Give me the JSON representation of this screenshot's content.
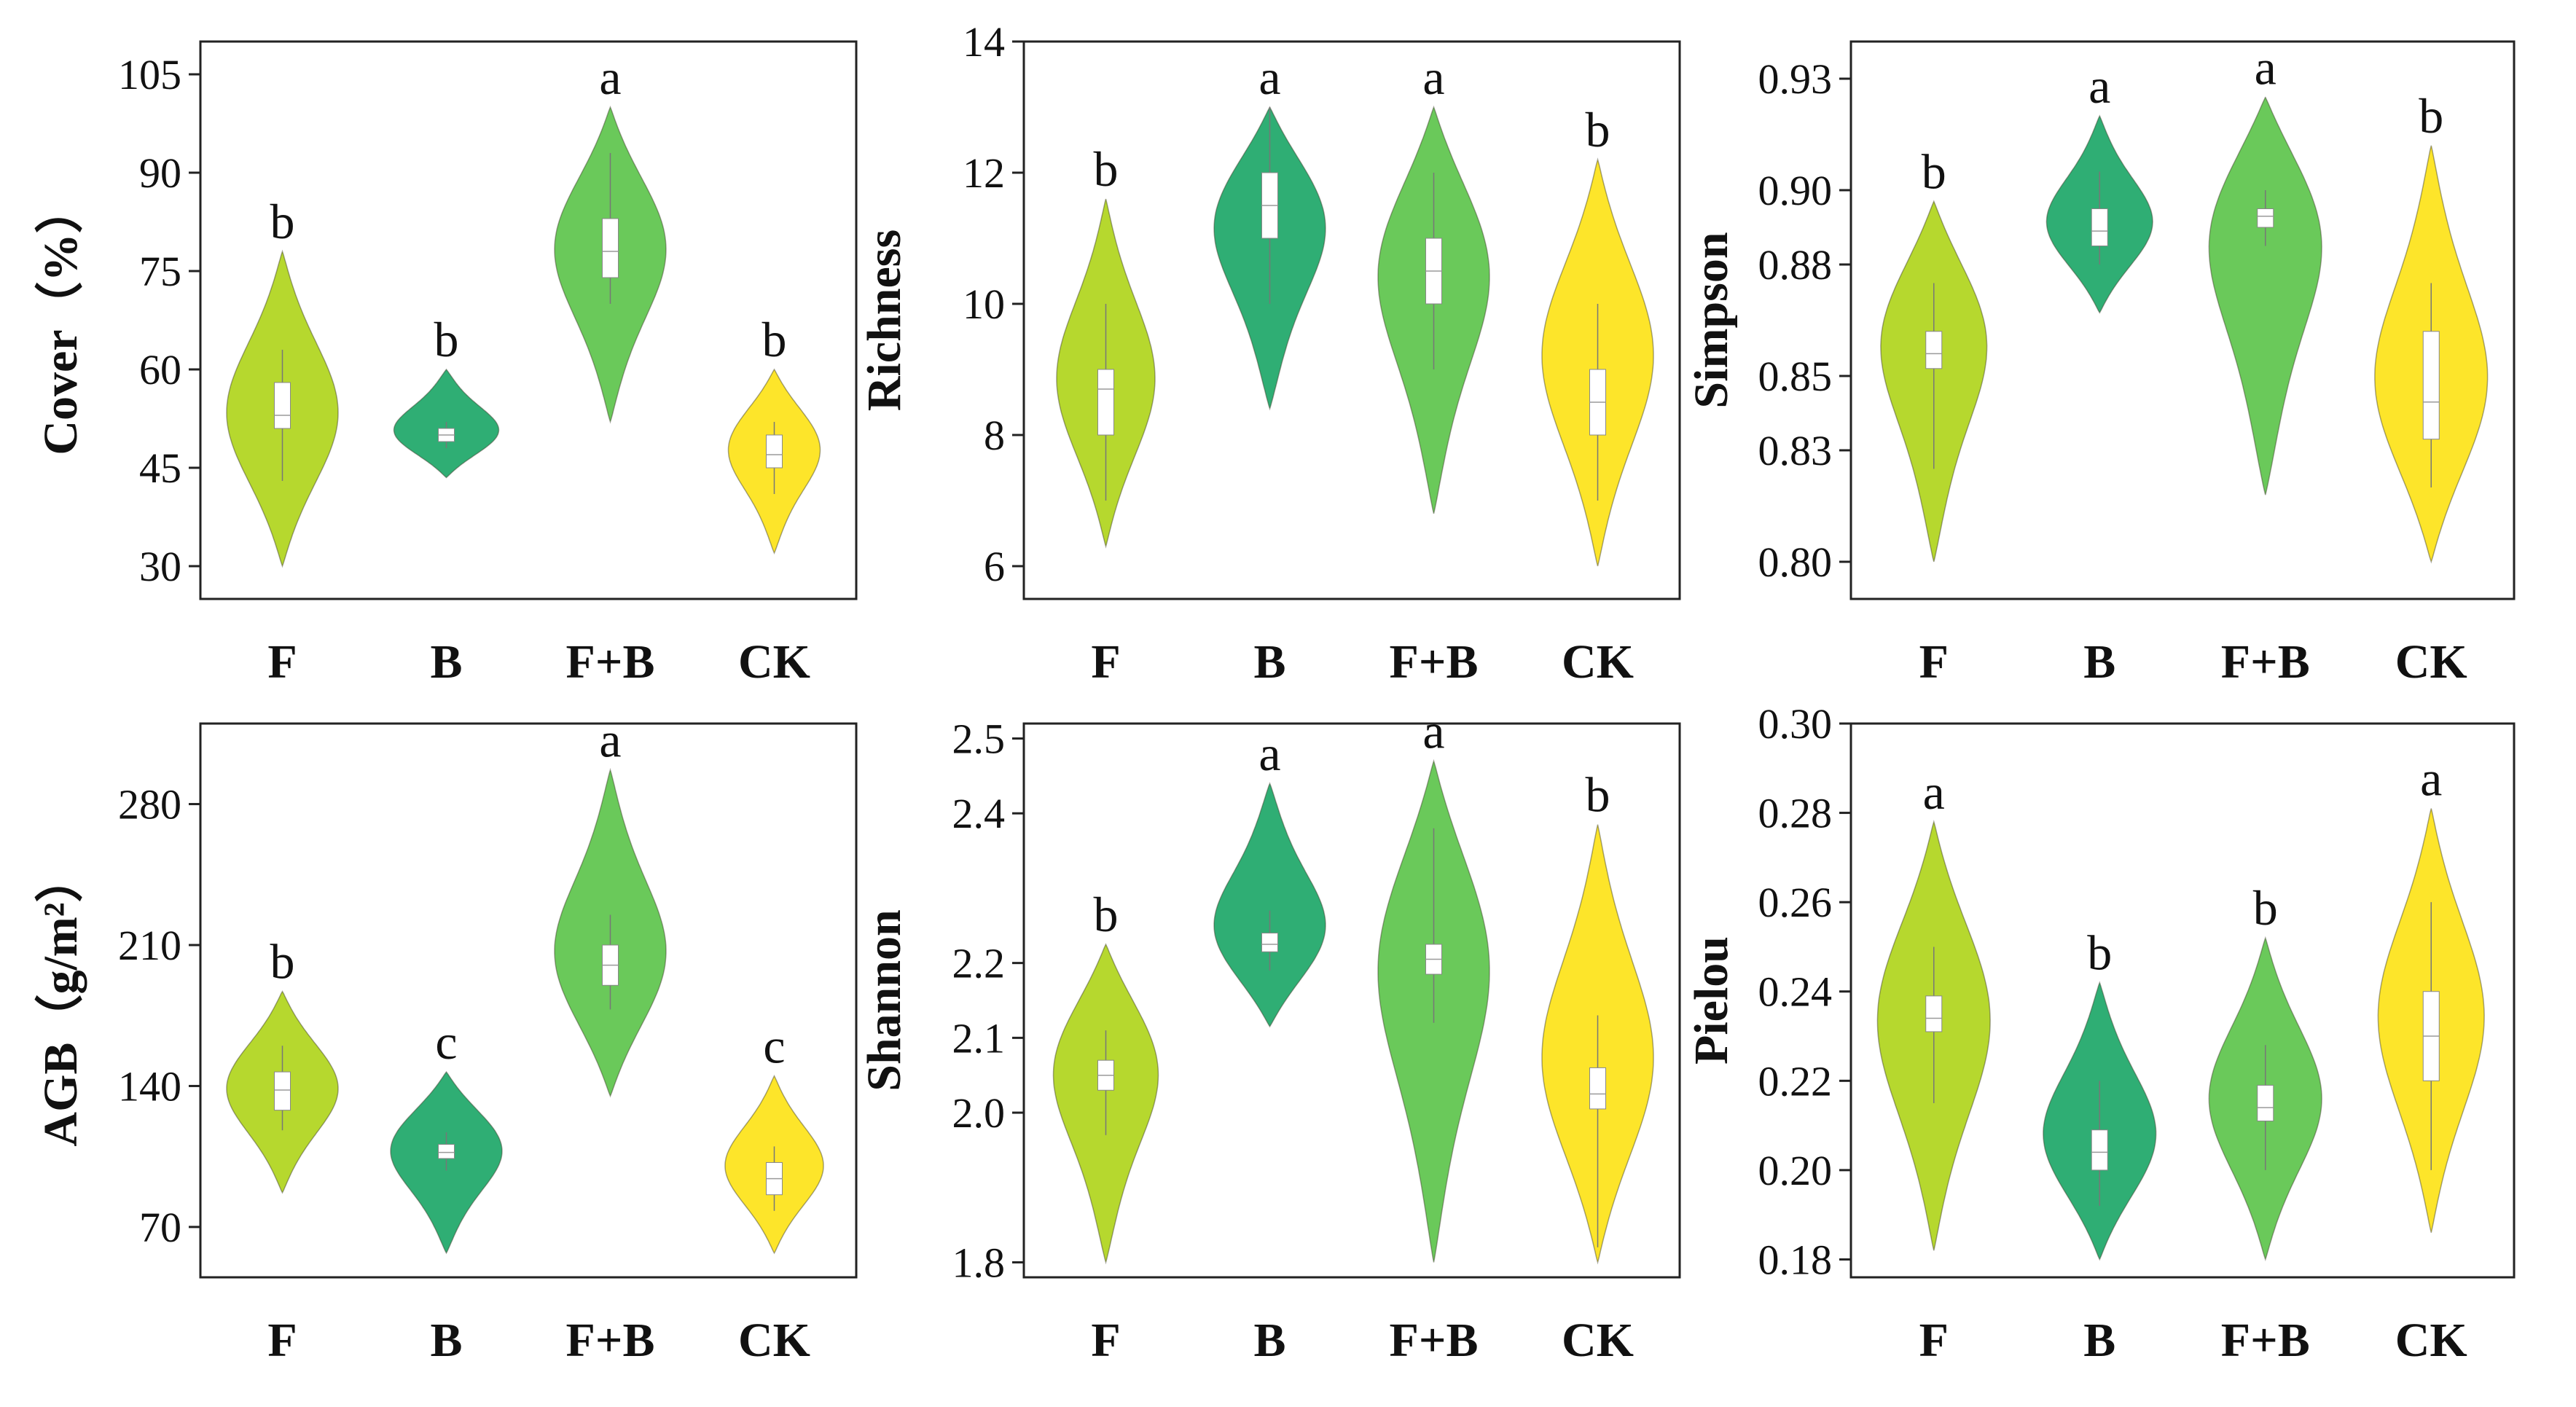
{
  "group_colors": {
    "F": "#b6d82e",
    "B": "#2fae74",
    "F+B": "#6ac95a",
    "CK": "#fde52a"
  },
  "chart_data": [
    {
      "type": "violin",
      "ylabel": "Cover（%）",
      "ylim": [
        25,
        110
      ],
      "yticks": [
        "30",
        "45",
        "60",
        "75",
        "90",
        "105"
      ],
      "categories": [
        "F",
        "B",
        "F+B",
        "CK"
      ],
      "groups": [
        {
          "name": "F",
          "min": 30,
          "max": 78,
          "q1": 51,
          "median": 53,
          "q3": 58,
          "wlo": 43,
          "whi": 63,
          "mode": 53,
          "width": 0.85,
          "letter": "b"
        },
        {
          "name": "B",
          "min": 43.5,
          "max": 60,
          "q1": 49,
          "median": 50,
          "q3": 51,
          "wlo": 48,
          "whi": 52,
          "mode": 50,
          "width": 0.8,
          "letter": "b"
        },
        {
          "name": "F+B",
          "min": 52,
          "max": 100,
          "q1": 74,
          "median": 78,
          "q3": 83,
          "wlo": 70,
          "whi": 93,
          "mode": 80,
          "width": 0.85,
          "letter": "a"
        },
        {
          "name": "CK",
          "min": 32,
          "max": 60,
          "q1": 45,
          "median": 47,
          "q3": 50,
          "wlo": 41,
          "whi": 52,
          "mode": 49,
          "width": 0.7,
          "letter": "b"
        }
      ]
    },
    {
      "type": "violin",
      "ylabel": "Richness",
      "ylim": [
        5.5,
        14
      ],
      "yticks": [
        "6",
        "8",
        "10",
        "12",
        "14"
      ],
      "categories": [
        "F",
        "B",
        "F+B",
        "CK"
      ],
      "groups": [
        {
          "name": "F",
          "min": 6.3,
          "max": 11.6,
          "q1": 8,
          "median": 8.7,
          "q3": 9,
          "wlo": 7,
          "whi": 10,
          "mode": 8.8,
          "width": 0.75,
          "letter": "b"
        },
        {
          "name": "B",
          "min": 8.4,
          "max": 13,
          "q1": 11,
          "median": 11.5,
          "q3": 12,
          "wlo": 10,
          "whi": 13,
          "mode": 11.5,
          "width": 0.85,
          "letter": "a"
        },
        {
          "name": "F+B",
          "min": 6.8,
          "max": 13,
          "q1": 10,
          "median": 10.5,
          "q3": 11,
          "wlo": 9,
          "whi": 12,
          "mode": 10.8,
          "width": 0.85,
          "letter": "a"
        },
        {
          "name": "CK",
          "min": 6,
          "max": 12.2,
          "q1": 8,
          "median": 8.5,
          "q3": 9,
          "wlo": 7,
          "whi": 10,
          "mode": 9.3,
          "width": 0.85,
          "letter": "b"
        }
      ]
    },
    {
      "type": "violin",
      "ylabel": "Simpson",
      "ylim": [
        0.79,
        0.94
      ],
      "yticks": [
        "0.80",
        "0.83",
        "0.85",
        "0.88",
        "0.90",
        "0.93"
      ],
      "categories": [
        "F",
        "B",
        "F+B",
        "CK"
      ],
      "groups": [
        {
          "name": "F",
          "min": 0.8,
          "max": 0.897,
          "q1": 0.852,
          "median": 0.856,
          "q3": 0.862,
          "wlo": 0.825,
          "whi": 0.875,
          "mode": 0.865,
          "width": 0.8,
          "letter": "b"
        },
        {
          "name": "B",
          "min": 0.867,
          "max": 0.92,
          "q1": 0.885,
          "median": 0.889,
          "q3": 0.895,
          "wlo": 0.88,
          "whi": 0.905,
          "mode": 0.89,
          "width": 0.8,
          "letter": "a"
        },
        {
          "name": "F+B",
          "min": 0.818,
          "max": 0.925,
          "q1": 0.89,
          "median": 0.893,
          "q3": 0.895,
          "wlo": 0.885,
          "whi": 0.9,
          "mode": 0.895,
          "width": 0.85,
          "letter": "a"
        },
        {
          "name": "CK",
          "min": 0.8,
          "max": 0.912,
          "q1": 0.833,
          "median": 0.843,
          "q3": 0.862,
          "wlo": 0.82,
          "whi": 0.875,
          "mode": 0.845,
          "width": 0.85,
          "letter": "b"
        }
      ]
    },
    {
      "type": "violin",
      "ylabel": "AGB（g/m²）",
      "ylim": [
        45,
        320
      ],
      "yticks": [
        "70",
        "140",
        "210",
        "280"
      ],
      "categories": [
        "F",
        "B",
        "F+B",
        "CK"
      ],
      "groups": [
        {
          "name": "F",
          "min": 87,
          "max": 187,
          "q1": 128,
          "median": 138,
          "q3": 147,
          "wlo": 118,
          "whi": 160,
          "mode": 140,
          "width": 0.85,
          "letter": "b"
        },
        {
          "name": "B",
          "min": 57,
          "max": 147,
          "q1": 104,
          "median": 107,
          "q3": 111,
          "wlo": 98,
          "whi": 117,
          "mode": 112,
          "width": 0.85,
          "letter": "c"
        },
        {
          "name": "F+B",
          "min": 135,
          "max": 297,
          "q1": 190,
          "median": 200,
          "q3": 210,
          "wlo": 178,
          "whi": 225,
          "mode": 200,
          "width": 0.85,
          "letter": "a"
        },
        {
          "name": "CK",
          "min": 57,
          "max": 145,
          "q1": 86,
          "median": 94,
          "q3": 102,
          "wlo": 78,
          "whi": 110,
          "mode": 100,
          "width": 0.75,
          "letter": "c"
        }
      ]
    },
    {
      "type": "violin",
      "ylabel": "Shannon",
      "ylim": [
        1.78,
        2.52
      ],
      "yticks": [
        "1.8",
        "2.0",
        "2.1",
        "2.2",
        "2.4",
        "2.5"
      ],
      "categories": [
        "F",
        "B",
        "F+B",
        "CK"
      ],
      "groups": [
        {
          "name": "F",
          "min": 1.8,
          "max": 2.225,
          "q1": 2.03,
          "median": 2.05,
          "q3": 2.07,
          "wlo": 1.97,
          "whi": 2.11,
          "mode": 2.08,
          "width": 0.8,
          "letter": "b"
        },
        {
          "name": "B",
          "min": 2.115,
          "max": 2.44,
          "q1": 2.215,
          "median": 2.225,
          "q3": 2.24,
          "wlo": 2.19,
          "whi": 2.27,
          "mode": 2.23,
          "width": 0.85,
          "letter": "a"
        },
        {
          "name": "F+B",
          "min": 1.8,
          "max": 2.47,
          "q1": 2.185,
          "median": 2.205,
          "q3": 2.225,
          "wlo": 2.12,
          "whi": 2.38,
          "mode": 2.23,
          "width": 0.85,
          "letter": "a"
        },
        {
          "name": "CK",
          "min": 1.8,
          "max": 2.385,
          "q1": 2.005,
          "median": 2.025,
          "q3": 2.06,
          "wlo": 1.82,
          "whi": 2.13,
          "mode": 2.06,
          "width": 0.85,
          "letter": "b"
        }
      ]
    },
    {
      "type": "violin",
      "ylabel": "Pielou",
      "ylim": [
        0.176,
        0.3
      ],
      "yticks": [
        "0.18",
        "0.20",
        "0.22",
        "0.24",
        "0.26",
        "0.28",
        "0.30"
      ],
      "categories": [
        "F",
        "B",
        "F+B",
        "CK"
      ],
      "groups": [
        {
          "name": "F",
          "min": 0.182,
          "max": 0.278,
          "q1": 0.231,
          "median": 0.234,
          "q3": 0.239,
          "wlo": 0.215,
          "whi": 0.25,
          "mode": 0.236,
          "width": 0.85,
          "letter": "a"
        },
        {
          "name": "B",
          "min": 0.18,
          "max": 0.242,
          "q1": 0.2,
          "median": 0.204,
          "q3": 0.209,
          "wlo": 0.192,
          "whi": 0.22,
          "mode": 0.206,
          "width": 0.85,
          "letter": "b"
        },
        {
          "name": "F+B",
          "min": 0.18,
          "max": 0.252,
          "q1": 0.211,
          "median": 0.214,
          "q3": 0.219,
          "wlo": 0.2,
          "whi": 0.228,
          "mode": 0.216,
          "width": 0.85,
          "letter": "b"
        },
        {
          "name": "CK",
          "min": 0.186,
          "max": 0.281,
          "q1": 0.22,
          "median": 0.23,
          "q3": 0.24,
          "wlo": 0.2,
          "whi": 0.26,
          "mode": 0.235,
          "width": 0.8,
          "letter": "a"
        }
      ]
    }
  ]
}
